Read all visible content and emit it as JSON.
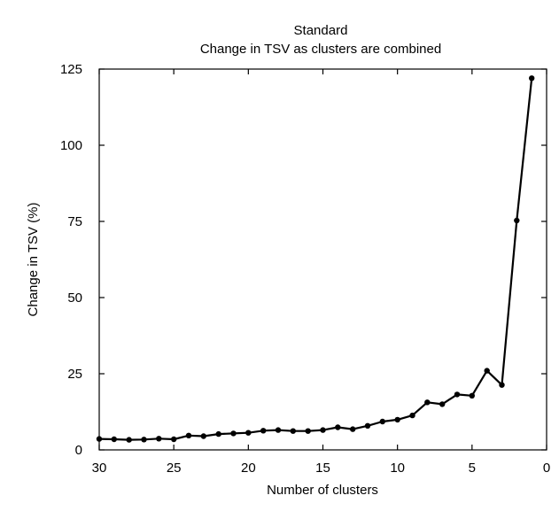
{
  "chart_data": {
    "type": "line",
    "title": "Standard",
    "subtitle": "Change in TSV as clusters are combined",
    "xlabel": "Number of clusters",
    "ylabel": "Change in TSV (%)",
    "xlim": [
      30,
      0
    ],
    "ylim": [
      0,
      125
    ],
    "x_reversed": true,
    "xticks": [
      "30",
      "25",
      "20",
      "15",
      "10",
      "5",
      "0"
    ],
    "yticks": [
      "0",
      "25",
      "50",
      "75",
      "100",
      "125"
    ],
    "grid": false,
    "series_color": "#000000",
    "series": [
      {
        "x": [
          30,
          29,
          28,
          27,
          26,
          25,
          24,
          23,
          22,
          21,
          20,
          19,
          18,
          17,
          16,
          15,
          14,
          13,
          12,
          11,
          10,
          9,
          8,
          7,
          6,
          5,
          4,
          3,
          2,
          1
        ],
        "values": [
          3.6,
          3.5,
          3.3,
          3.4,
          3.7,
          3.5,
          4.7,
          4.5,
          5.2,
          5.4,
          5.6,
          6.3,
          6.5,
          6.2,
          6.2,
          6.5,
          7.4,
          6.8,
          7.9,
          9.3,
          9.9,
          11.3,
          15.6,
          15.0,
          18.2,
          17.8,
          26.0,
          21.3,
          75.3,
          122.0
        ]
      }
    ]
  }
}
